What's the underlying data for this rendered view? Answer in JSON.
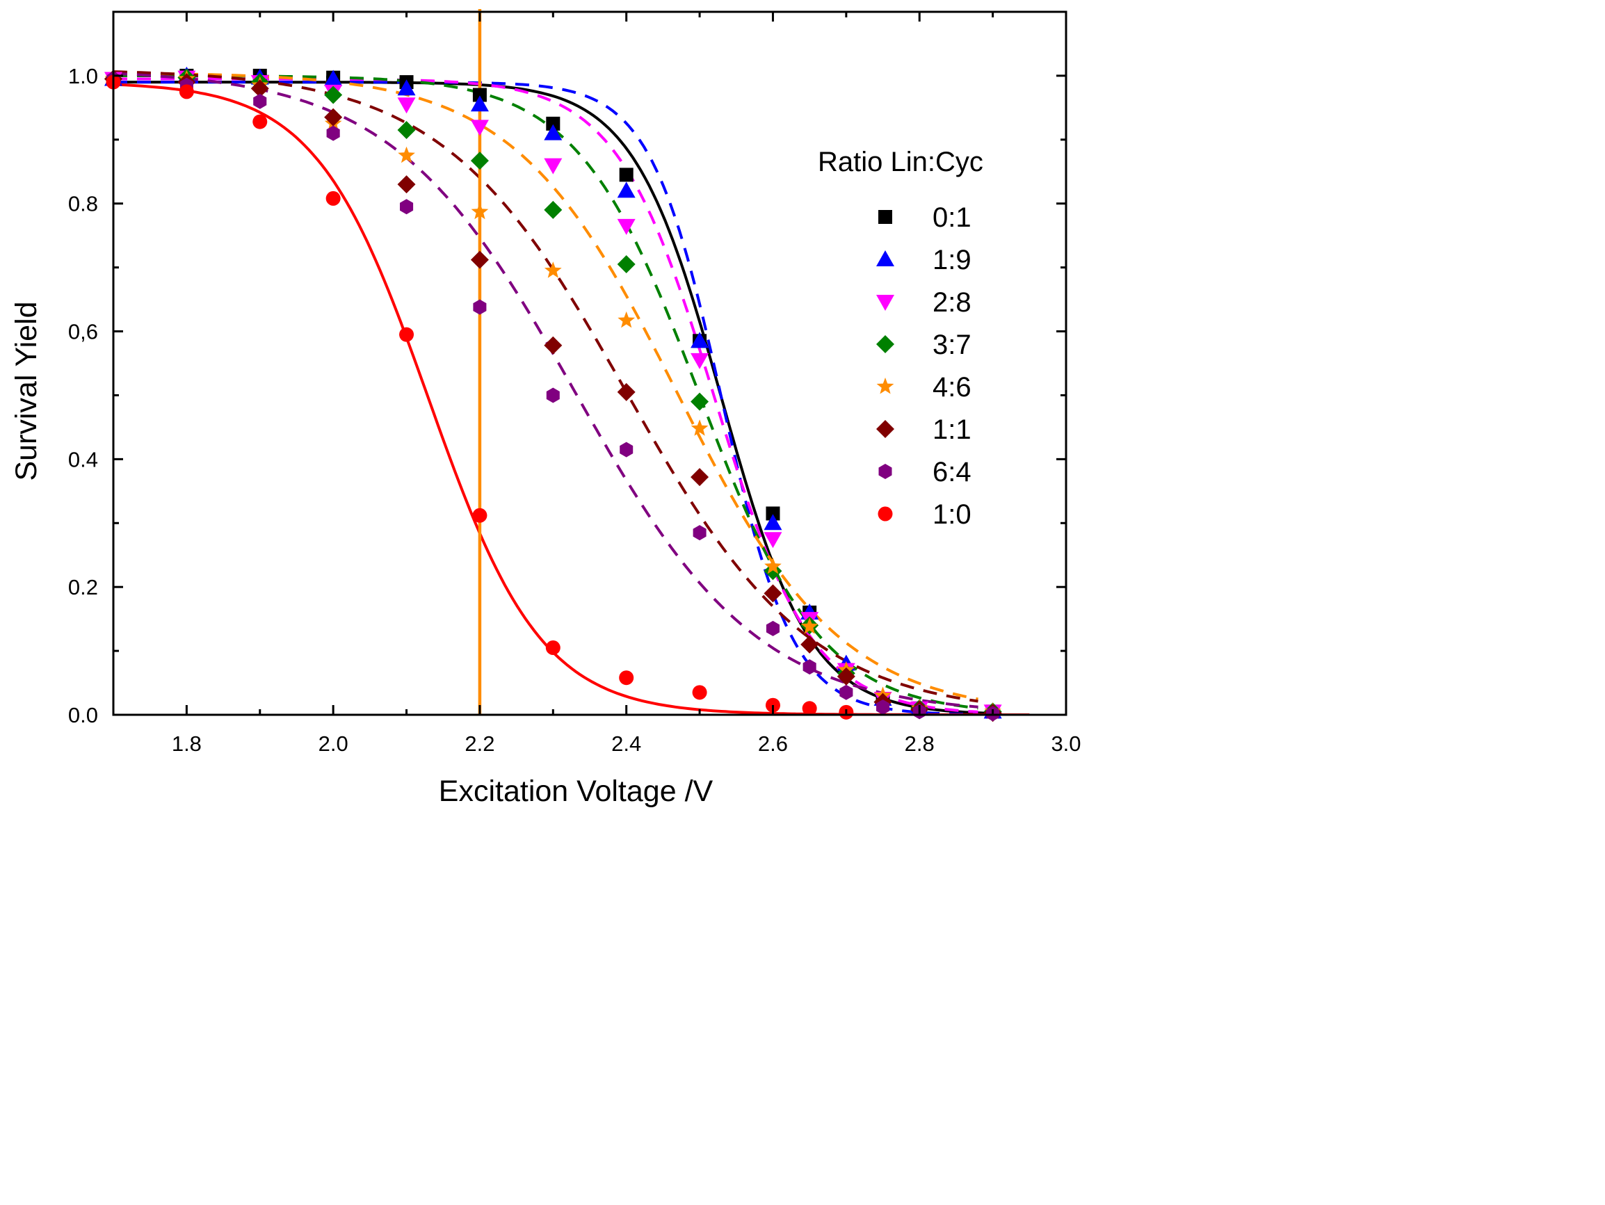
{
  "chart_data": {
    "type": "scatter",
    "title": "",
    "xlabel": "Excitation Voltage /V",
    "ylabel": "Survival Yield",
    "xlim": [
      1.7,
      3.0
    ],
    "ylim": [
      0.0,
      1.1
    ],
    "grid": false,
    "legend_position": "right",
    "legend_title": "Ratio Lin:Cyc",
    "x_ticks": [
      {
        "value": 1.8,
        "label": "1.8"
      },
      {
        "value": 2.0,
        "label": "2.0"
      },
      {
        "value": 2.2,
        "label": "2.2"
      },
      {
        "value": 2.4,
        "label": "2.4"
      },
      {
        "value": 2.6,
        "label": "2.6"
      },
      {
        "value": 2.8,
        "label": "2.8"
      },
      {
        "value": 3.0,
        "label": "3.0"
      }
    ],
    "y_ticks": [
      {
        "value": 0.0,
        "label": "0.0"
      },
      {
        "value": 0.2,
        "label": "0.2"
      },
      {
        "value": 0.4,
        "label": "0.4"
      },
      {
        "value": 0.6,
        "label": "0,6"
      },
      {
        "value": 0.8,
        "label": "0.8"
      },
      {
        "value": 1.0,
        "label": "1.0"
      }
    ],
    "reference_line": {
      "x": 2.2,
      "color": "#ff8c00"
    },
    "series": [
      {
        "name": "0:1",
        "color": "#000000",
        "marker": "square",
        "line": "solid",
        "x": [
          1.7,
          1.8,
          1.9,
          2.0,
          2.1,
          2.2,
          2.3,
          2.4,
          2.5,
          2.6,
          2.65,
          2.7,
          2.75,
          2.8,
          2.9
        ],
        "y": [
          0.995,
          1.0,
          1.0,
          0.997,
          0.99,
          0.97,
          0.925,
          0.845,
          0.585,
          0.315,
          0.16,
          0.07,
          0.025,
          0.01,
          0.005
        ],
        "fit": {
          "x0": 2.53,
          "k": 16.5,
          "top": 0.99
        }
      },
      {
        "name": "1:9",
        "color": "#0000ff",
        "marker": "triangle-up",
        "line": "dashed",
        "x": [
          1.7,
          1.8,
          1.9,
          2.0,
          2.1,
          2.2,
          2.3,
          2.4,
          2.5,
          2.6,
          2.65,
          2.7,
          2.75,
          2.8,
          2.9
        ],
        "y": [
          0.995,
          1.0,
          0.997,
          0.995,
          0.98,
          0.955,
          0.91,
          0.82,
          0.585,
          0.3,
          0.16,
          0.08,
          0.025,
          0.01,
          0.005
        ],
        "fit": {
          "x0": 2.53,
          "k": 20.5,
          "top": 0.99
        }
      },
      {
        "name": "2:8",
        "color": "#ff00ff",
        "marker": "triangle-down",
        "line": "dashed",
        "x": [
          1.7,
          1.8,
          1.9,
          2.0,
          2.1,
          2.2,
          2.3,
          2.4,
          2.5,
          2.6,
          2.65,
          2.7,
          2.75,
          2.8,
          2.9
        ],
        "y": [
          0.995,
          0.997,
          0.99,
          0.975,
          0.955,
          0.92,
          0.86,
          0.765,
          0.555,
          0.275,
          0.15,
          0.07,
          0.025,
          0.01,
          0.005
        ],
        "fit": {
          "x0": 2.52,
          "k": 15.0,
          "top": 0.995
        }
      },
      {
        "name": "3:7",
        "color": "#008000",
        "marker": "diamond",
        "line": "dashed",
        "x": [
          1.7,
          1.8,
          1.9,
          2.0,
          2.1,
          2.2,
          2.3,
          2.4,
          2.5,
          2.6,
          2.65,
          2.7,
          2.75,
          2.8,
          2.9
        ],
        "y": [
          0.995,
          0.997,
          0.99,
          0.97,
          0.915,
          0.867,
          0.79,
          0.705,
          0.49,
          0.225,
          0.14,
          0.065,
          0.02,
          0.01,
          0.005
        ],
        "fit": {
          "x0": 2.5,
          "k": 12.0,
          "top": 1.0
        }
      },
      {
        "name": "4:6",
        "color": "#ff8c00",
        "marker": "star",
        "line": "dashed",
        "x": [
          1.7,
          1.8,
          1.9,
          2.0,
          2.1,
          2.2,
          2.3,
          2.4,
          2.5,
          2.6,
          2.65,
          2.7,
          2.75,
          2.8,
          2.9
        ],
        "y": [
          0.995,
          0.995,
          0.985,
          0.925,
          0.875,
          0.787,
          0.695,
          0.617,
          0.448,
          0.232,
          0.138,
          0.07,
          0.03,
          0.01,
          0.005
        ],
        "fit": {
          "x0": 2.47,
          "k": 9.0,
          "top": 1.005
        }
      },
      {
        "name": "1:1",
        "color": "#800000",
        "marker": "diamond",
        "line": "dashed",
        "x": [
          1.7,
          1.8,
          1.9,
          2.0,
          2.1,
          2.2,
          2.3,
          2.4,
          2.5,
          2.6,
          2.65,
          2.7,
          2.75,
          2.8,
          2.9
        ],
        "y": [
          0.995,
          0.99,
          0.98,
          0.935,
          0.83,
          0.712,
          0.578,
          0.505,
          0.372,
          0.19,
          0.11,
          0.06,
          0.02,
          0.008,
          0.003
        ],
        "fit": {
          "x0": 2.4,
          "k": 8.0,
          "top": 1.01
        }
      },
      {
        "name": "6:4",
        "color": "#800080",
        "marker": "hexagon",
        "line": "dashed",
        "x": [
          1.7,
          1.8,
          1.9,
          2.0,
          2.1,
          2.2,
          2.3,
          2.4,
          2.5,
          2.6,
          2.65,
          2.7,
          2.75,
          2.8,
          2.9
        ],
        "y": [
          0.995,
          0.985,
          0.96,
          0.91,
          0.795,
          0.638,
          0.5,
          0.415,
          0.285,
          0.135,
          0.075,
          0.035,
          0.012,
          0.005,
          0.002
        ],
        "fit": {
          "x0": 2.33,
          "k": 8.0,
          "top": 1.01
        }
      },
      {
        "name": "1:0",
        "color": "#ff0000",
        "marker": "circle",
        "line": "solid",
        "x": [
          1.7,
          1.8,
          1.9,
          2.0,
          2.1,
          2.2,
          2.3,
          2.4,
          2.5,
          2.6,
          2.65,
          2.7
        ],
        "y": [
          0.99,
          0.975,
          0.928,
          0.808,
          0.595,
          0.312,
          0.105,
          0.058,
          0.035,
          0.015,
          0.01,
          0.004
        ],
        "fit": {
          "x0": 2.13,
          "k": 13.0,
          "top": 0.99
        }
      }
    ]
  }
}
